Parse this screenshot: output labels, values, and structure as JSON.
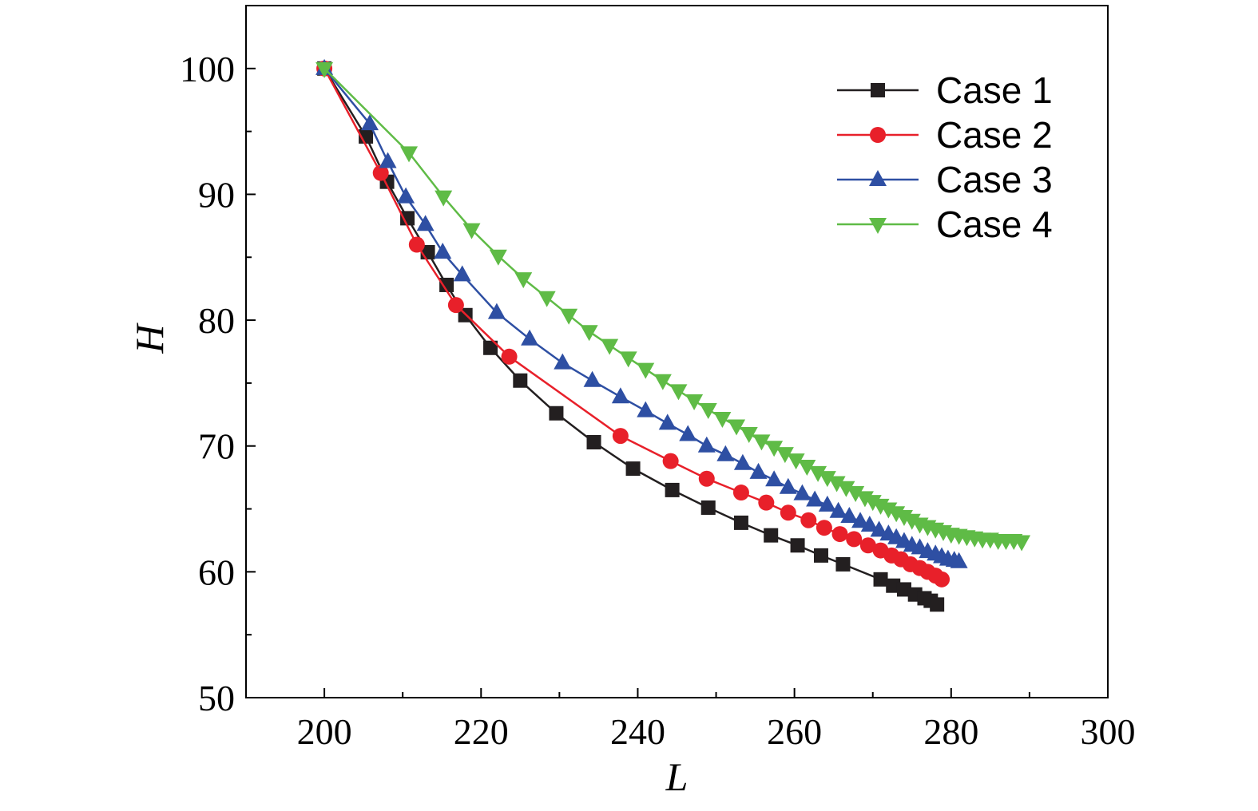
{
  "chart_data": {
    "type": "line",
    "title": "",
    "xlabel": "L",
    "ylabel": "H",
    "xlim": [
      190,
      300
    ],
    "ylim": [
      50,
      105
    ],
    "xticks": [
      200,
      220,
      240,
      260,
      280,
      300
    ],
    "yticks": [
      50,
      60,
      70,
      80,
      90,
      100
    ],
    "legend_position": "top-right",
    "series": [
      {
        "name": "Case 1",
        "color": "#231f20",
        "marker": "square",
        "x": [
          200,
          205.3,
          208,
          210.6,
          213.2,
          215.6,
          218,
          221.2,
          225,
          229.6,
          234.4,
          239.4,
          244.4,
          249,
          253.2,
          257,
          260.4,
          263.4,
          266.2,
          271,
          272.6,
          274,
          275.4,
          276.6,
          277.4,
          278.2
        ],
        "y": [
          100,
          94.6,
          91,
          88.1,
          85.4,
          82.8,
          80.4,
          77.8,
          75.2,
          72.6,
          70.3,
          68.2,
          66.5,
          65.1,
          63.9,
          62.9,
          62.1,
          61.3,
          60.6,
          59.4,
          58.9,
          58.6,
          58.2,
          57.9,
          57.7,
          57.4
        ]
      },
      {
        "name": "Case 2",
        "color": "#e8202a",
        "marker": "circle",
        "x": [
          200,
          207.2,
          211.8,
          216.8,
          223.6,
          237.8,
          244.2,
          248.8,
          253.2,
          256.4,
          259.2,
          261.8,
          263.8,
          265.8,
          267.6,
          269.4,
          271,
          272.4,
          273.6,
          274.8,
          276,
          277,
          278,
          278.8
        ],
        "y": [
          100,
          91.7,
          86,
          81.2,
          77.1,
          70.8,
          68.8,
          67.4,
          66.3,
          65.5,
          64.7,
          64.1,
          63.5,
          63,
          62.6,
          62.1,
          61.7,
          61.3,
          61,
          60.6,
          60.3,
          60,
          59.7,
          59.4
        ]
      },
      {
        "name": "Case 3",
        "color": "#2e4fa3",
        "marker": "triangle-up",
        "x": [
          200,
          205.8,
          208.1,
          210.4,
          212.9,
          215.1,
          217.6,
          222,
          226.2,
          230.4,
          234.2,
          237.8,
          241,
          243.8,
          246.4,
          248.8,
          251.2,
          253.4,
          255.4,
          257.4,
          259.2,
          261,
          262.6,
          264.2,
          265.6,
          267,
          268.4,
          269.6,
          270.8,
          272,
          273,
          274,
          275,
          276,
          277,
          278,
          278.8,
          279.6,
          280.4,
          281
        ],
        "y": [
          100,
          95.6,
          92.6,
          89.8,
          87.6,
          85.4,
          83.6,
          80.6,
          78.5,
          76.6,
          75.2,
          73.9,
          72.8,
          71.8,
          70.9,
          70,
          69.3,
          68.6,
          67.9,
          67.3,
          66.7,
          66.2,
          65.7,
          65.3,
          64.8,
          64.4,
          64,
          63.7,
          63.3,
          63,
          62.7,
          62.4,
          62.1,
          61.9,
          61.6,
          61.4,
          61.2,
          61,
          60.9,
          60.8
        ]
      },
      {
        "name": "Case 4",
        "color": "#5fbb46",
        "marker": "triangle-down",
        "x": [
          200,
          210.8,
          215.2,
          218.8,
          222.2,
          225.4,
          228.4,
          231.2,
          233.8,
          236.4,
          238.8,
          241,
          243.2,
          245.2,
          247.2,
          249,
          250.8,
          252.6,
          254.2,
          255.8,
          257.4,
          258.8,
          260.2,
          261.6,
          263,
          264.2,
          265.4,
          266.6,
          267.8,
          269,
          270,
          271,
          272,
          273,
          274,
          275,
          276,
          277,
          278,
          279,
          280,
          281,
          282,
          283,
          284,
          285,
          286,
          287,
          288,
          289
        ],
        "y": [
          100,
          93.3,
          89.8,
          87.2,
          85.1,
          83.3,
          81.8,
          80.4,
          79.1,
          78,
          77,
          76.1,
          75.2,
          74.4,
          73.6,
          72.9,
          72.2,
          71.6,
          71,
          70.4,
          69.9,
          69.4,
          68.9,
          68.4,
          67.9,
          67.5,
          67.1,
          66.7,
          66.3,
          65.9,
          65.6,
          65.3,
          65,
          64.7,
          64.4,
          64.1,
          63.8,
          63.6,
          63.4,
          63.2,
          63,
          62.9,
          62.8,
          62.7,
          62.6,
          62.6,
          62.5,
          62.5,
          62.5,
          62.4
        ]
      }
    ]
  }
}
